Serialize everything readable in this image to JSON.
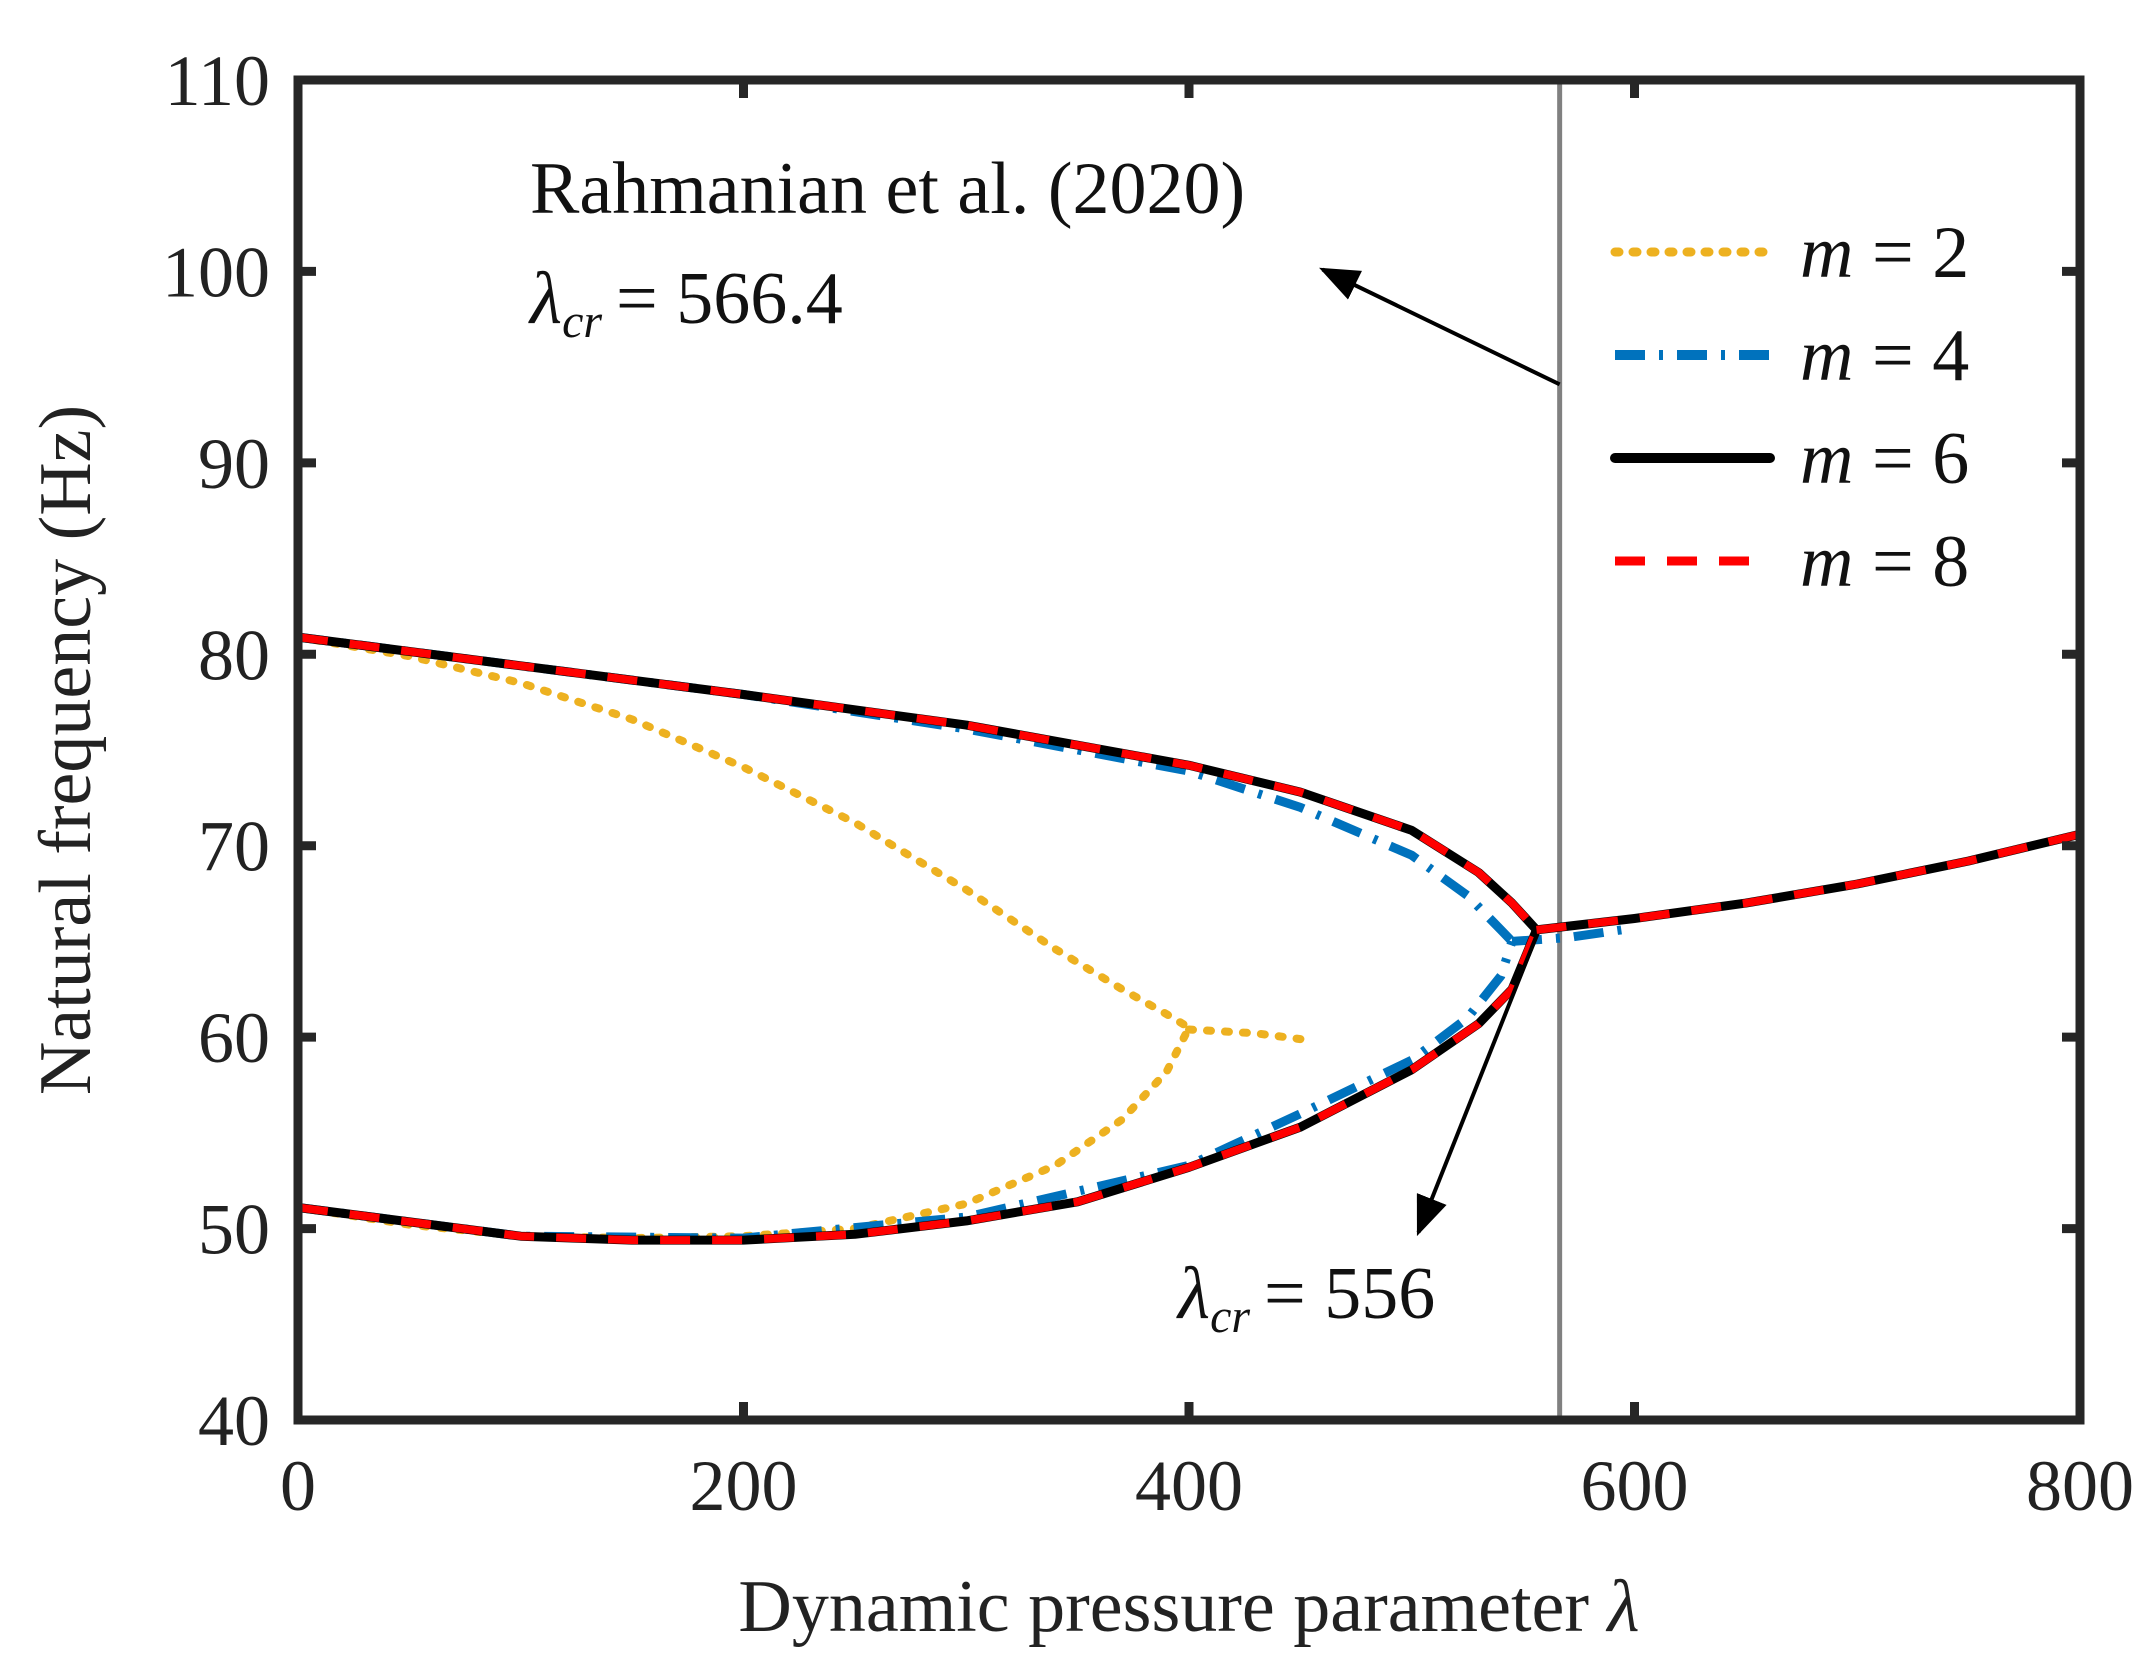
{
  "chart_data": {
    "type": "line",
    "title": "",
    "xlabel": "Dynamic pressure parameter",
    "xlabel_symbol": "λ",
    "ylabel": "Natural frequency (Hz)",
    "xlim": [
      0,
      800
    ],
    "ylim": [
      40,
      110
    ],
    "xticks": [
      0,
      200,
      400,
      600,
      800
    ],
    "yticks": [
      40,
      50,
      60,
      70,
      80,
      90,
      100,
      110
    ],
    "grid": false,
    "legend_position": "top-right",
    "colors": {
      "m2": "#EDB120",
      "m4": "#0072BD",
      "m6": "#000000",
      "m8": "#FF0000",
      "refline": "#808080",
      "axes": "#262626"
    },
    "series": [
      {
        "name": "m = 2",
        "m": "2",
        "style": "dotted",
        "color": "#EDB120",
        "segments": [
          {
            "x": [
              0,
              50,
              100,
              150,
              200,
              250,
              300,
              340,
              370,
              390,
              400
            ],
            "y": [
              80.9,
              79.9,
              78.5,
              76.6,
              74.1,
              71.2,
              67.7,
              64.6,
              62.5,
              61.2,
              60.5
            ]
          },
          {
            "x": [
              0,
              50,
              100,
              150,
              200,
              250,
              300,
              340,
              370,
              390,
              400
            ],
            "y": [
              51.1,
              50.2,
              49.6,
              49.5,
              49.6,
              50.0,
              51.3,
              53.3,
              55.7,
              58.2,
              60.5
            ]
          },
          {
            "x": [
              400,
              430,
              450
            ],
            "y": [
              60.4,
              60.2,
              59.9
            ]
          }
        ]
      },
      {
        "name": "m = 4",
        "m": "4",
        "style": "dashdot",
        "color": "#0072BD",
        "segments": [
          {
            "x": [
              0,
              100,
              200,
              300,
              400,
              450,
              500,
              525,
              540,
              545
            ],
            "y": [
              80.9,
              79.4,
              77.9,
              76.1,
              73.9,
              72.0,
              69.5,
              67.4,
              65.6,
              65.0
            ]
          },
          {
            "x": [
              0,
              100,
              200,
              300,
              400,
              450,
              500,
              525,
              540,
              545
            ],
            "y": [
              51.1,
              49.6,
              49.5,
              50.6,
              53.3,
              56.0,
              58.8,
              61.0,
              63.2,
              65.0
            ]
          },
          {
            "x": [
              545,
              570,
              600
            ],
            "y": [
              65.0,
              65.2,
              65.7
            ]
          }
        ]
      },
      {
        "name": "m = 6",
        "m": "6",
        "style": "solid",
        "color": "#000000",
        "segments": [
          {
            "x": [
              0,
              100,
              200,
              300,
              400,
              450,
              500,
              530,
              545,
              556
            ],
            "y": [
              80.9,
              79.4,
              77.9,
              76.3,
              74.2,
              72.8,
              70.8,
              68.6,
              67.0,
              65.6
            ]
          },
          {
            "x": [
              0,
              100,
              150,
              200,
              250,
              300,
              350,
              400,
              450,
              500,
              530,
              545,
              556
            ],
            "y": [
              51.1,
              49.6,
              49.4,
              49.4,
              49.7,
              50.4,
              51.4,
              53.2,
              55.3,
              58.3,
              60.7,
              62.5,
              65.6
            ]
          },
          {
            "x": [
              556,
              600,
              650,
              700,
              750,
              800
            ],
            "y": [
              65.6,
              66.2,
              67.0,
              68.0,
              69.2,
              70.6
            ]
          }
        ]
      },
      {
        "name": "m = 8",
        "m": "8",
        "style": "dashed",
        "color": "#FF0000",
        "segments": [
          {
            "x": [
              0,
              100,
              200,
              300,
              400,
              450,
              500,
              530,
              545,
              556
            ],
            "y": [
              80.9,
              79.4,
              77.9,
              76.3,
              74.2,
              72.8,
              70.8,
              68.6,
              67.0,
              65.6
            ]
          },
          {
            "x": [
              0,
              100,
              150,
              200,
              250,
              300,
              350,
              400,
              450,
              500,
              530,
              545,
              556
            ],
            "y": [
              51.1,
              49.6,
              49.4,
              49.4,
              49.7,
              50.4,
              51.4,
              53.2,
              55.3,
              58.3,
              60.7,
              62.5,
              65.6
            ]
          },
          {
            "x": [
              556,
              600,
              650,
              700,
              750,
              800
            ],
            "y": [
              65.6,
              66.2,
              67.0,
              68.0,
              69.2,
              70.6
            ]
          }
        ]
      }
    ],
    "reference_line": {
      "x": 566.4,
      "orientation": "vertical"
    },
    "annotations": [
      {
        "id": "rahmanian",
        "text": "Rahmanian et al. (2020)",
        "lambda_symbol": "λ",
        "subscript": "cr",
        "value": "= 566.4",
        "text_pos": {
          "x": 270,
          "y": 103.5
        },
        "arrow_from": {
          "x": 566.4,
          "y": 94.1
        },
        "arrow_to": {
          "x": 460,
          "y": 100.1
        }
      },
      {
        "id": "present",
        "lambda_symbol": "λ",
        "subscript": "cr",
        "value": "= 556",
        "text_pos": {
          "x": 443,
          "y": 44.7
        },
        "arrow_from": {
          "x": 556,
          "y": 65.3
        },
        "arrow_to": {
          "x": 503,
          "y": 49.8
        }
      }
    ]
  }
}
